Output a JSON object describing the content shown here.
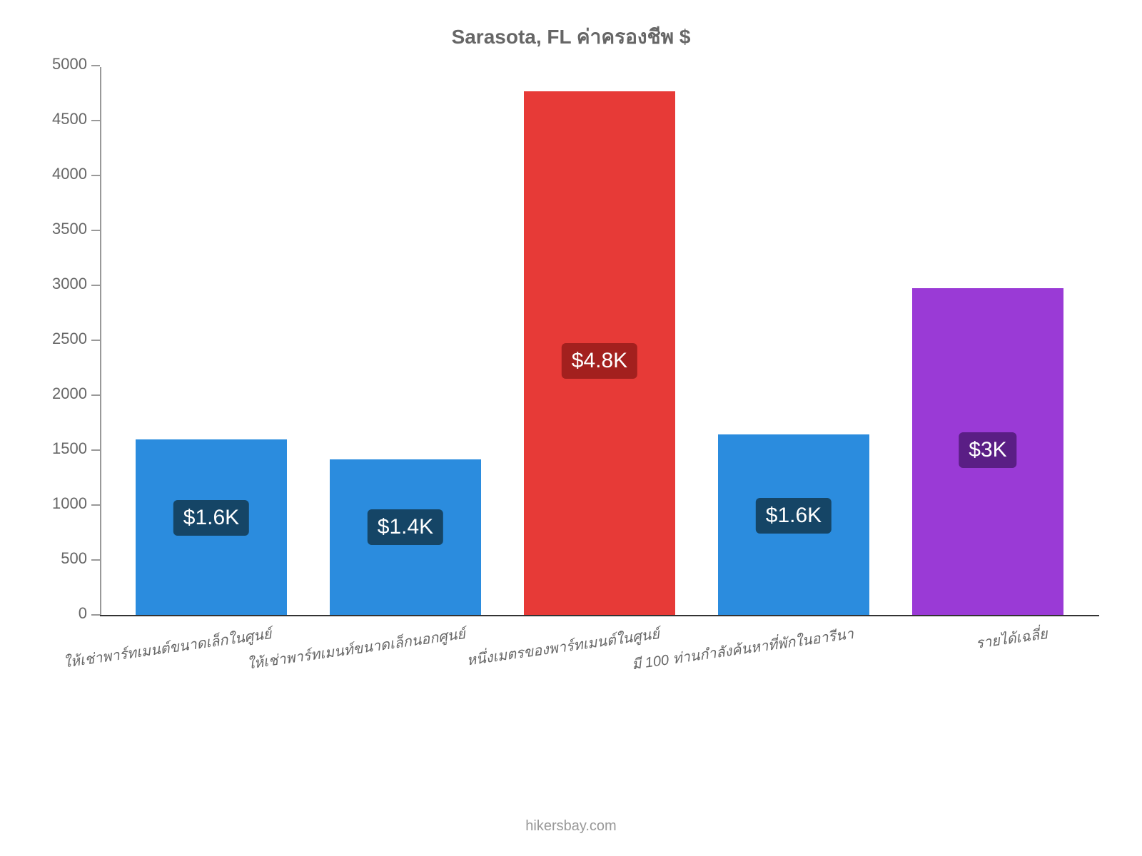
{
  "chart": {
    "type": "bar",
    "title": "Sarasota, FL ค่าครองชีพ $",
    "title_color": "#666666",
    "title_fontsize": 28,
    "title_fontweight": "bold",
    "background_color": "#ffffff",
    "axis_color": "#999999",
    "tick_label_color": "#666666",
    "tick_label_fontsize": 22,
    "x_label_fontsize": 20,
    "x_label_rotation_deg": -8,
    "x_label_color": "#666666",
    "bar_width_ratio": 0.78,
    "ylim": [
      0,
      5000
    ],
    "ytick_step": 500,
    "yticks": [
      0,
      500,
      1000,
      1500,
      2000,
      2500,
      3000,
      3500,
      4000,
      4500,
      5000
    ],
    "categories": [
      "ให้เช่าพาร์ทเมนต์ขนาดเล็กในศูนย์",
      "ให้เช่าพาร์ทเมนท์ขนาดเล็กนอกศูนย์",
      "หนึ่งเมตรของพาร์ทเมนต์ในศูนย์",
      "มี 100 ท่านกำลังค้นหาที่พักในอารีนา",
      "รายได้เฉลี่ย"
    ],
    "values": [
      1600,
      1420,
      4780,
      1650,
      2980
    ],
    "bar_colors": [
      "#2b8cde",
      "#2b8cde",
      "#e73a37",
      "#2b8cde",
      "#9a3ad6"
    ],
    "value_labels": [
      "$1.6K",
      "$1.4K",
      "$4.8K",
      "$1.6K",
      "$3K"
    ],
    "value_label_bg_colors": [
      "#154566",
      "#154566",
      "#a3201e",
      "#154566",
      "#5a1e85"
    ],
    "value_label_color": "#ffffff",
    "value_label_fontsize": 30,
    "value_label_radius": 6,
    "attribution": "hikersbay.com",
    "attribution_color": "#999999",
    "attribution_fontsize": 20
  }
}
